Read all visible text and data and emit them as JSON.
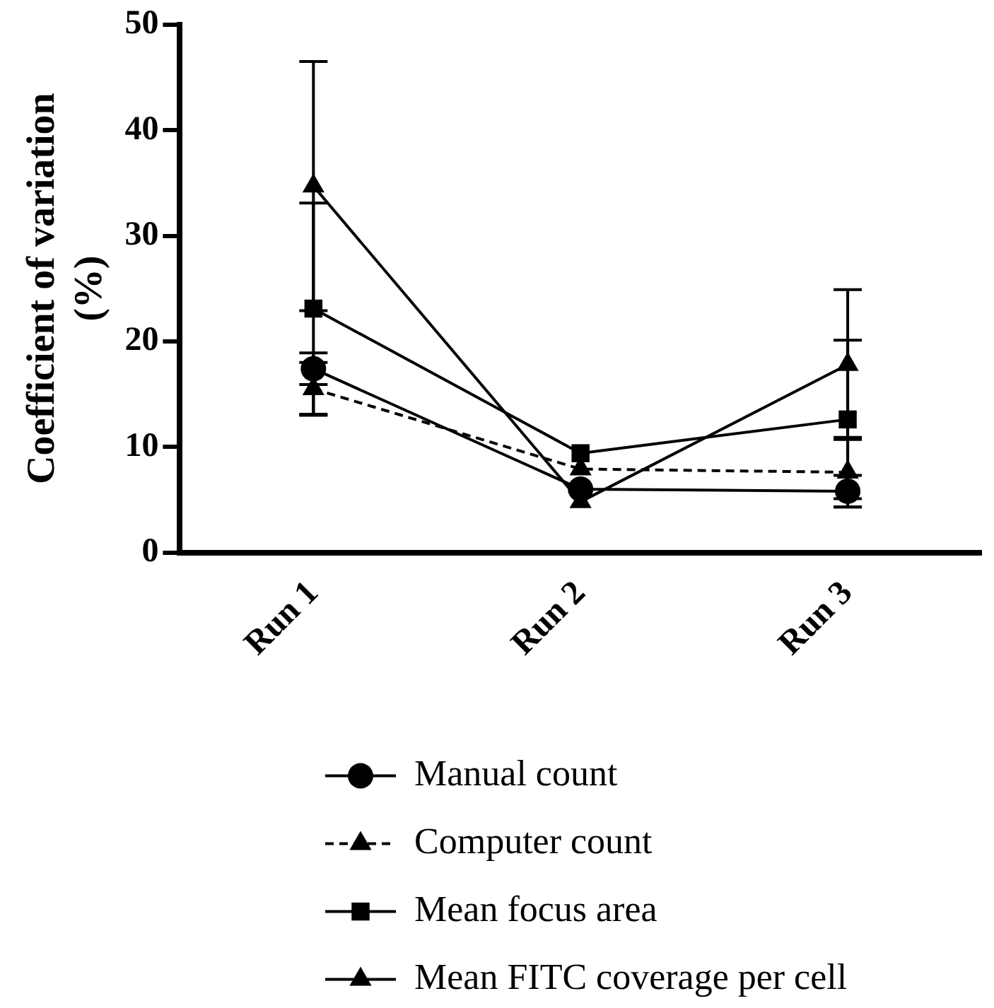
{
  "chart_data": {
    "type": "line",
    "ylabel": "Coefficient of variation\n(%)",
    "categories": [
      "Run 1",
      "Run 2",
      "Run 3"
    ],
    "ylim": [
      0,
      50
    ],
    "yticks": [
      0,
      10,
      20,
      30,
      40,
      50
    ],
    "grid": false,
    "legend": "bottom",
    "series": [
      {
        "name": "Manual count",
        "color": "#000000",
        "marker": "circle",
        "line_style": "solid",
        "values": [
          17.4,
          6.0,
          5.8
        ],
        "errors": [
          1.5,
          null,
          1.5
        ]
      },
      {
        "name": "Computer count",
        "color": "#000000",
        "marker": "triangle",
        "line_style": "dashed",
        "values": [
          15.5,
          7.9,
          7.6
        ],
        "errors": [
          2.5,
          null,
          3.3
        ]
      },
      {
        "name": "Mean focus area",
        "color": "#000000",
        "marker": "square",
        "line_style": "solid",
        "values": [
          23.1,
          9.4,
          12.6
        ],
        "errors": [
          10.0,
          null,
          7.5
        ]
      },
      {
        "name": "Mean FITC coverage per cell",
        "color": "#000000",
        "marker": "triangle",
        "line_style": "solid",
        "values": [
          34.7,
          4.8,
          17.8
        ],
        "errors": [
          11.8,
          null,
          7.1
        ]
      }
    ]
  }
}
